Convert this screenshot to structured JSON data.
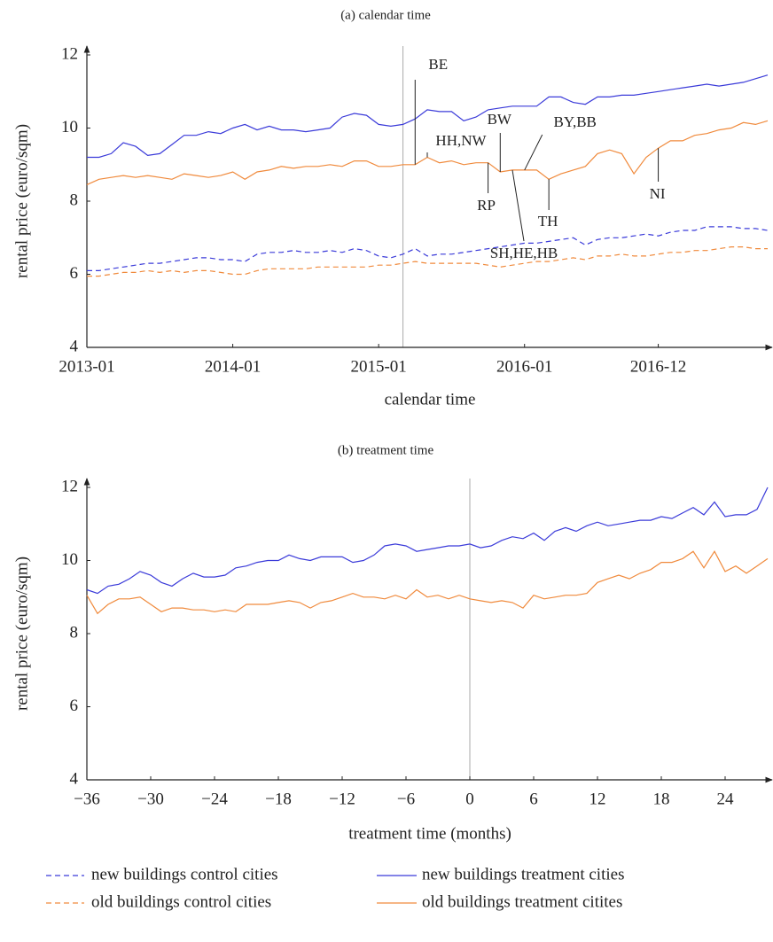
{
  "chart_data": [
    {
      "type": "line",
      "title": "(a) calendar time",
      "x_label": "calendar time",
      "y_label": "rental price (euro/sqm)",
      "x": [
        "2013-01",
        "2013-02",
        "2013-03",
        "2013-04",
        "2013-05",
        "2013-06",
        "2013-07",
        "2013-08",
        "2013-09",
        "2013-10",
        "2013-11",
        "2013-12",
        "2014-01",
        "2014-02",
        "2014-03",
        "2014-04",
        "2014-05",
        "2014-06",
        "2014-07",
        "2014-08",
        "2014-09",
        "2014-10",
        "2014-11",
        "2014-12",
        "2015-01",
        "2015-02",
        "2015-03",
        "2015-04",
        "2015-05",
        "2015-06",
        "2015-07",
        "2015-08",
        "2015-09",
        "2015-10",
        "2015-11",
        "2015-12",
        "2016-01",
        "2016-02",
        "2016-03",
        "2016-04",
        "2016-05",
        "2016-06",
        "2016-07",
        "2016-08",
        "2016-09",
        "2016-10",
        "2016-11",
        "2016-12",
        "2017-01",
        "2017-02",
        "2017-03",
        "2017-04",
        "2017-05",
        "2017-06",
        "2017-07",
        "2017-08",
        "2017-09"
      ],
      "xlim": [
        "2013-01",
        "2017-09"
      ],
      "xticks": [
        "2013-01",
        "2014-01",
        "2015-01",
        "2016-01",
        "2016-12"
      ],
      "ylim": [
        4,
        12
      ],
      "yticks": [
        4,
        6,
        8,
        10,
        12
      ],
      "vline": "2015-03",
      "series": [
        {
          "name": "new buildings control cities",
          "color": "#3b3bd9",
          "dashed": true,
          "values": [
            6.1,
            6.1,
            6.15,
            6.2,
            6.25,
            6.3,
            6.3,
            6.35,
            6.4,
            6.45,
            6.45,
            6.4,
            6.4,
            6.35,
            6.55,
            6.6,
            6.6,
            6.65,
            6.6,
            6.6,
            6.65,
            6.6,
            6.7,
            6.65,
            6.5,
            6.45,
            6.55,
            6.7,
            6.5,
            6.55,
            6.55,
            6.6,
            6.65,
            6.7,
            6.75,
            6.8,
            6.85,
            6.85,
            6.9,
            6.95,
            7.0,
            6.8,
            6.95,
            7.0,
            7.0,
            7.05,
            7.1,
            7.05,
            7.15,
            7.2,
            7.2,
            7.3,
            7.3,
            7.3,
            7.25,
            7.25,
            7.2
          ]
        },
        {
          "name": "new buildings treatment cities",
          "color": "#3b3bd9",
          "dashed": false,
          "values": [
            9.2,
            9.2,
            9.3,
            9.6,
            9.5,
            9.25,
            9.3,
            9.55,
            9.8,
            9.8,
            9.9,
            9.85,
            10.0,
            10.1,
            9.95,
            10.05,
            9.95,
            9.95,
            9.9,
            9.95,
            10.0,
            10.3,
            10.4,
            10.35,
            10.1,
            10.05,
            10.1,
            10.25,
            10.5,
            10.45,
            10.45,
            10.2,
            10.3,
            10.5,
            10.55,
            10.6,
            10.6,
            10.6,
            10.85,
            10.85,
            10.7,
            10.65,
            10.85,
            10.85,
            10.9,
            10.9,
            10.95,
            11.0,
            11.05,
            11.1,
            11.15,
            11.2,
            11.15,
            11.2,
            11.25,
            11.35,
            11.45
          ]
        },
        {
          "name": "old buildings control cities",
          "color": "#f08a3c",
          "dashed": true,
          "values": [
            5.95,
            5.95,
            6.0,
            6.05,
            6.05,
            6.1,
            6.05,
            6.1,
            6.05,
            6.1,
            6.1,
            6.05,
            6.0,
            6.0,
            6.1,
            6.15,
            6.15,
            6.15,
            6.15,
            6.2,
            6.2,
            6.2,
            6.2,
            6.2,
            6.25,
            6.25,
            6.3,
            6.35,
            6.3,
            6.3,
            6.3,
            6.3,
            6.3,
            6.25,
            6.2,
            6.25,
            6.3,
            6.35,
            6.35,
            6.4,
            6.45,
            6.4,
            6.5,
            6.5,
            6.55,
            6.5,
            6.5,
            6.55,
            6.6,
            6.6,
            6.65,
            6.65,
            6.7,
            6.75,
            6.75,
            6.7,
            6.7
          ]
        },
        {
          "name": "old buildings treatment citites",
          "color": "#f08a3c",
          "dashed": false,
          "values": [
            8.45,
            8.6,
            8.65,
            8.7,
            8.65,
            8.7,
            8.65,
            8.6,
            8.75,
            8.7,
            8.65,
            8.7,
            8.8,
            8.6,
            8.8,
            8.85,
            8.95,
            8.9,
            8.95,
            8.95,
            9.0,
            8.95,
            9.1,
            9.1,
            8.95,
            8.95,
            9.0,
            9.0,
            9.2,
            9.05,
            9.1,
            9.0,
            9.05,
            9.05,
            8.8,
            8.85,
            8.85,
            8.85,
            8.6,
            8.75,
            8.85,
            8.95,
            9.3,
            9.4,
            9.3,
            8.75,
            9.2,
            9.45,
            9.65,
            9.65,
            9.8,
            9.85,
            9.95,
            10.0,
            10.15,
            10.1,
            10.2
          ]
        }
      ],
      "annotations": [
        {
          "text": "BE",
          "x": "2015-04"
        },
        {
          "text": "HH,NW",
          "x": "2015-05"
        },
        {
          "text": "BW",
          "x": "2015-11"
        },
        {
          "text": "BY,BB",
          "x": "2016-01"
        },
        {
          "text": "RP",
          "x": "2015-10"
        },
        {
          "text": "SH,HE,HB",
          "x": "2015-12"
        },
        {
          "text": "TH",
          "x": "2016-03"
        },
        {
          "text": "NI",
          "x": "2016-12"
        }
      ]
    },
    {
      "type": "line",
      "title": "(b) treatment time",
      "x_label": "treatment time (months)",
      "y_label": "rental price (euro/sqm)",
      "x": [
        -36,
        -35,
        -34,
        -33,
        -32,
        -31,
        -30,
        -29,
        -28,
        -27,
        -26,
        -25,
        -24,
        -23,
        -22,
        -21,
        -20,
        -19,
        -18,
        -17,
        -16,
        -15,
        -14,
        -13,
        -12,
        -11,
        -10,
        -9,
        -8,
        -7,
        -6,
        -5,
        -4,
        -3,
        -2,
        -1,
        0,
        1,
        2,
        3,
        4,
        5,
        6,
        7,
        8,
        9,
        10,
        11,
        12,
        13,
        14,
        15,
        16,
        17,
        18,
        19,
        20,
        21,
        22,
        23,
        24,
        25,
        26,
        27,
        28
      ],
      "xlim": [
        -36,
        28
      ],
      "xticks": [
        {
          "value": -36,
          "label": "−36"
        },
        {
          "value": -30,
          "label": "−30"
        },
        {
          "value": -24,
          "label": "−24"
        },
        {
          "value": -18,
          "label": "−18"
        },
        {
          "value": -12,
          "label": "−12"
        },
        {
          "value": -6,
          "label": "−6"
        },
        0,
        6,
        12,
        18,
        24
      ],
      "ylim": [
        4,
        12
      ],
      "yticks": [
        4,
        6,
        8,
        10,
        12
      ],
      "vline": 0,
      "series": [
        {
          "color": "#3b3bd9",
          "dashed": false,
          "values": [
            9.2,
            9.1,
            9.3,
            9.35,
            9.5,
            9.7,
            9.6,
            9.4,
            9.3,
            9.5,
            9.65,
            9.55,
            9.55,
            9.6,
            9.8,
            9.85,
            9.95,
            10.0,
            10.0,
            10.15,
            10.05,
            10.0,
            10.1,
            10.1,
            10.1,
            9.95,
            10.0,
            10.15,
            10.4,
            10.45,
            10.4,
            10.25,
            10.3,
            10.35,
            10.4,
            10.4,
            10.45,
            10.35,
            10.4,
            10.55,
            10.65,
            10.6,
            10.75,
            10.55,
            10.8,
            10.9,
            10.8,
            10.95,
            11.05,
            10.95,
            11.0,
            11.05,
            11.1,
            11.1,
            11.2,
            11.15,
            11.3,
            11.45,
            11.25,
            11.6,
            11.2,
            11.25,
            11.25,
            11.4,
            12.0
          ]
        },
        {
          "color": "#f08a3c",
          "dashed": false,
          "values": [
            9.05,
            8.55,
            8.8,
            8.95,
            8.95,
            9.0,
            8.8,
            8.6,
            8.7,
            8.7,
            8.65,
            8.65,
            8.6,
            8.65,
            8.6,
            8.8,
            8.8,
            8.8,
            8.85,
            8.9,
            8.85,
            8.7,
            8.85,
            8.9,
            9.0,
            9.1,
            9.0,
            9.0,
            8.95,
            9.05,
            8.95,
            9.2,
            9.0,
            9.05,
            8.95,
            9.05,
            8.95,
            8.9,
            8.85,
            8.9,
            8.85,
            8.7,
            9.05,
            8.95,
            9.0,
            9.05,
            9.05,
            9.1,
            9.4,
            9.5,
            9.6,
            9.5,
            9.65,
            9.75,
            9.95,
            9.95,
            10.05,
            10.25,
            9.8,
            10.25,
            9.7,
            9.85,
            9.65,
            9.85,
            10.05
          ]
        }
      ]
    }
  ]
}
